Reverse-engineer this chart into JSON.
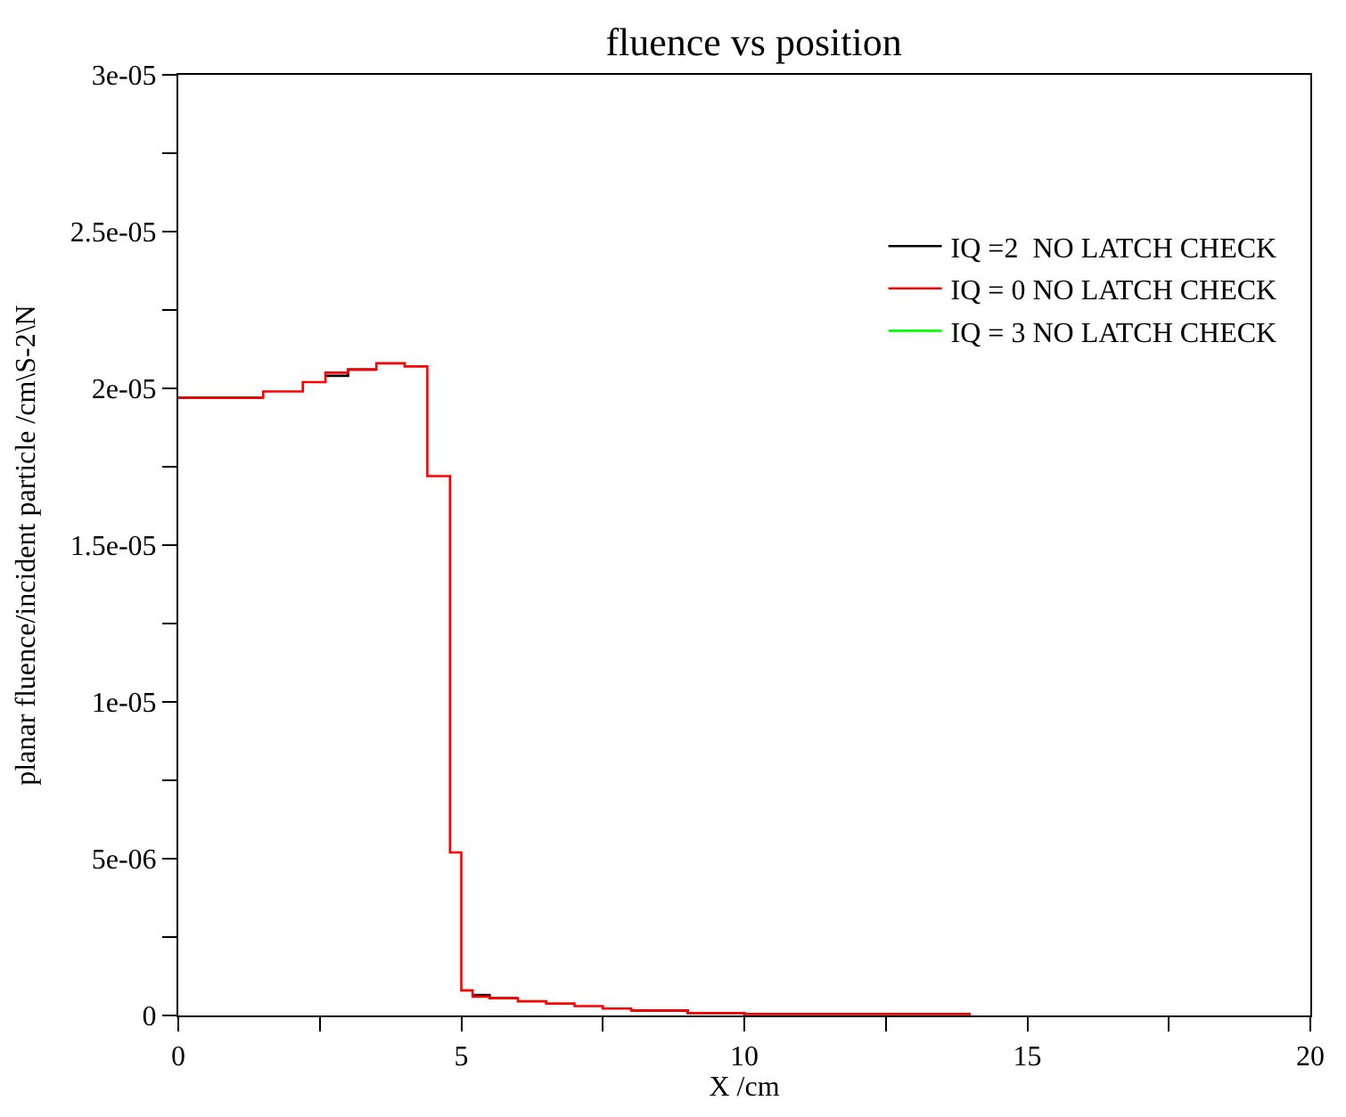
{
  "chart_data": {
    "type": "step",
    "title": "fluence vs position",
    "xlabel": "X /cm",
    "ylabel": "planar fluence/incident particle /cm\\S-2\\N",
    "x": [
      0,
      1.5,
      2.2,
      2.6,
      3.0,
      3.5,
      4.0,
      4.4,
      4.8,
      5.0,
      5.2,
      5.5,
      6,
      6.5,
      7,
      7.5,
      8,
      9,
      10,
      14
    ],
    "series": [
      {
        "name": "IQ =2  NO LATCH CHECK",
        "color": "#000000",
        "values": [
          1.97e-05,
          null,
          null,
          2.04e-05,
          2.06e-05,
          null,
          null,
          null,
          null,
          null,
          6.5e-07,
          5.5e-07,
          null,
          null,
          null,
          null,
          1.6e-07,
          8e-08,
          5e-08,
          5e-08
        ]
      },
      {
        "name": "IQ = 0 NO LATCH CHECK",
        "color": "#ff0000",
        "values": [
          1.97e-05,
          1.99e-05,
          2.02e-05,
          2.05e-05,
          2.06e-05,
          2.08e-05,
          2.07e-05,
          1.72e-05,
          5.2e-06,
          8e-07,
          6e-07,
          5.5e-07,
          4.5e-07,
          3.8e-07,
          3e-07,
          2.2e-07,
          1.6e-07,
          8e-08,
          5e-08,
          5e-08
        ]
      },
      {
        "name": "IQ = 3 NO LATCH CHECK",
        "color": "#00ff00",
        "values": [
          null,
          null,
          null,
          null,
          null,
          null,
          null,
          null,
          null,
          null,
          null,
          null,
          null,
          null,
          null,
          null,
          null,
          null,
          null,
          null
        ]
      }
    ],
    "xlim": [
      0,
      20
    ],
    "ylim": [
      0,
      3e-05
    ],
    "xticks": [
      0,
      {
        "value": 2.5,
        "label": null
      },
      5,
      {
        "value": 7.5,
        "label": null
      },
      10,
      {
        "value": 12.5,
        "label": null
      },
      15,
      {
        "value": 17.5,
        "label": null
      },
      20
    ],
    "yticks": [
      {
        "value": 0,
        "label": "0"
      },
      {
        "value": 2.5e-06,
        "label": null
      },
      {
        "value": 5e-06,
        "label": "5e-06"
      },
      {
        "value": 7.5e-06,
        "label": null
      },
      {
        "value": 1e-05,
        "label": "1e-05"
      },
      {
        "value": 1.25e-05,
        "label": null
      },
      {
        "value": 1.5e-05,
        "label": "1.5e-05"
      },
      {
        "value": 1.75e-05,
        "label": null
      },
      {
        "value": 2e-05,
        "label": "2e-05"
      },
      {
        "value": 2.25e-05,
        "label": null
      },
      {
        "value": 2.5e-05,
        "label": "2.5e-05"
      },
      {
        "value": 2.75e-05,
        "label": null
      },
      {
        "value": 3e-05,
        "label": "3e-05"
      }
    ],
    "legend": "top right",
    "marker": "none",
    "line_style": "solid"
  }
}
